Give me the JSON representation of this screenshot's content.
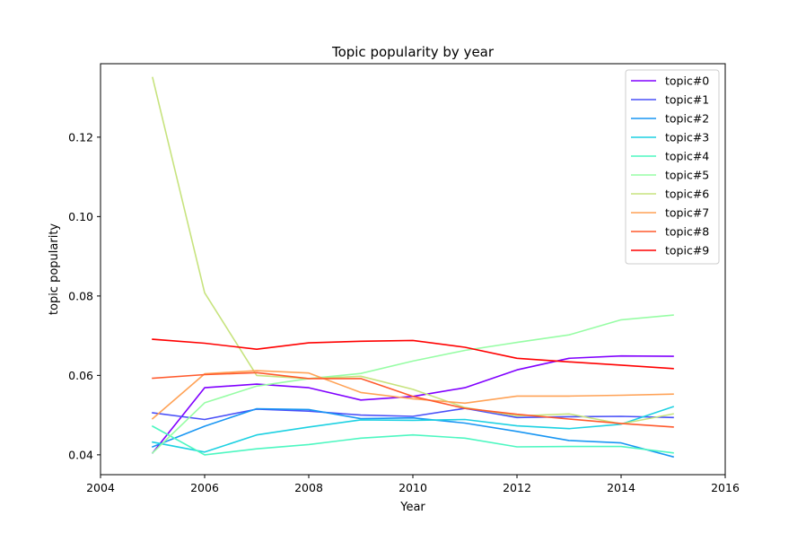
{
  "chart_data": {
    "type": "line",
    "title": "Topic popularity by year",
    "xlabel": "Year",
    "ylabel": "topic popularity",
    "xlim": [
      2004,
      2016
    ],
    "ylim": [
      0.035,
      0.1385
    ],
    "xticks": [
      "2004",
      "2006",
      "2008",
      "2010",
      "2012",
      "2014",
      "2016"
    ],
    "yticks": [
      "0.04",
      "0.06",
      "0.08",
      "0.10",
      "0.12"
    ],
    "grid": false,
    "legend_position": "top-right",
    "x": [
      2005,
      2006,
      2007,
      2008,
      2009,
      2010,
      2011,
      2012,
      2013,
      2014,
      2015
    ],
    "series": [
      {
        "name": "topic#0",
        "color": "#8000ff",
        "values": [
          0.0405,
          0.0569,
          0.0578,
          0.0569,
          0.0538,
          0.0547,
          0.0569,
          0.0614,
          0.0643,
          0.0649,
          0.0648
        ]
      },
      {
        "name": "topic#1",
        "color": "#4a50f8",
        "values": [
          0.0506,
          0.0489,
          0.0515,
          0.051,
          0.05,
          0.0497,
          0.0517,
          0.0494,
          0.0496,
          0.0497,
          0.0494
        ]
      },
      {
        "name": "topic#2",
        "color": "#1996f3",
        "values": [
          0.042,
          0.0472,
          0.0516,
          0.0514,
          0.0491,
          0.0493,
          0.048,
          0.0459,
          0.0436,
          0.043,
          0.0395
        ]
      },
      {
        "name": "topic#3",
        "color": "#1dd1e2",
        "values": [
          0.0432,
          0.0407,
          0.045,
          0.047,
          0.0488,
          0.0487,
          0.0489,
          0.0473,
          0.0466,
          0.0477,
          0.0521
        ]
      },
      {
        "name": "topic#4",
        "color": "#4df7c1",
        "values": [
          0.0472,
          0.04,
          0.0415,
          0.0426,
          0.0442,
          0.045,
          0.0442,
          0.042,
          0.0421,
          0.0421,
          0.0405
        ]
      },
      {
        "name": "topic#5",
        "color": "#97fda5",
        "values": [
          0.0405,
          0.0531,
          0.0573,
          0.0592,
          0.0605,
          0.0636,
          0.0663,
          0.0683,
          0.0702,
          0.074,
          0.0752
        ]
      },
      {
        "name": "topic#6",
        "color": "#c7e37e",
        "values": [
          0.135,
          0.0808,
          0.06,
          0.0592,
          0.0598,
          0.0565,
          0.0519,
          0.0498,
          0.0503,
          0.0478,
          0.0503
        ]
      },
      {
        "name": "topic#7",
        "color": "#ffa256",
        "values": [
          0.0491,
          0.0604,
          0.0612,
          0.0606,
          0.0557,
          0.0541,
          0.053,
          0.0548,
          0.0548,
          0.055,
          0.0553
        ]
      },
      {
        "name": "topic#8",
        "color": "#ff5a2d",
        "values": [
          0.0593,
          0.0602,
          0.0607,
          0.0592,
          0.0592,
          0.0547,
          0.0517,
          0.0502,
          0.049,
          0.0479,
          0.047
        ]
      },
      {
        "name": "topic#9",
        "color": "#ff0000",
        "values": [
          0.0691,
          0.0681,
          0.0666,
          0.0682,
          0.0686,
          0.0688,
          0.0671,
          0.0643,
          0.0634,
          0.0626,
          0.0617
        ]
      }
    ]
  }
}
